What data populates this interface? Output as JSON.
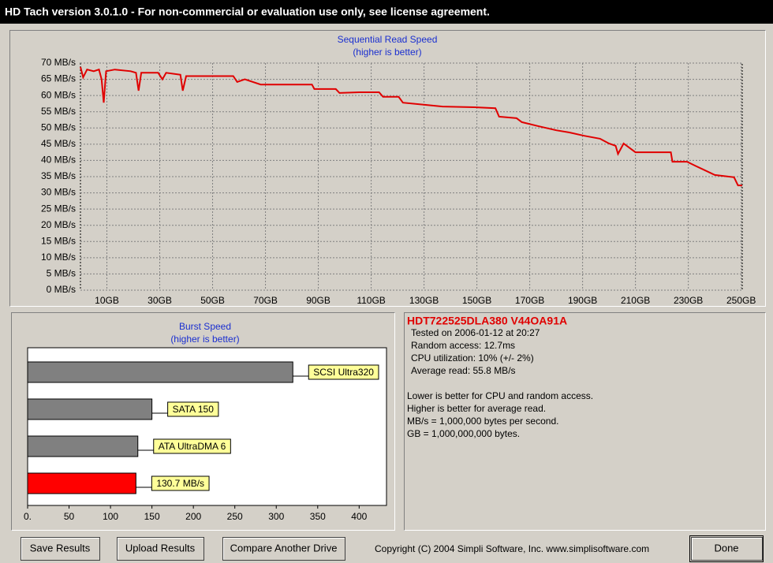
{
  "window_title": "HD Tach version 3.0.1.0  - For non-commercial or evaluation use only, see license agreement.",
  "chart_data": [
    {
      "type": "line",
      "title": "Sequential Read Speed",
      "subtitle": "(higher is better)",
      "color": "#e00000",
      "grid": true,
      "x": [
        0,
        1,
        2.5,
        5,
        7,
        8,
        8.8,
        9.7,
        13,
        19,
        21,
        22,
        23,
        29.4,
        31,
        32.4,
        37.8,
        38.7,
        40,
        57.8,
        59.3,
        62.2,
        68.2,
        87.6,
        88.5,
        96.6,
        98,
        105.5,
        113,
        114.5,
        120.4,
        122,
        131,
        137,
        149,
        157,
        158.4,
        165,
        167,
        173,
        180,
        185,
        190.6,
        196.6,
        200,
        202.5,
        203.4,
        205.5,
        210,
        223.4,
        224,
        229.5,
        232.5,
        240,
        247.3,
        248.8,
        250.4
      ],
      "values": [
        68.8,
        65.6,
        68,
        67.5,
        68,
        65,
        57.8,
        67.5,
        68,
        67.5,
        67,
        61.5,
        67,
        67,
        65,
        67,
        66.4,
        61.5,
        66,
        66,
        64.2,
        65,
        63.4,
        63.4,
        62,
        62,
        60.8,
        61,
        61,
        59.6,
        59.6,
        57.8,
        57.1,
        56.6,
        56.4,
        56.1,
        53.5,
        53,
        51.8,
        50.6,
        49.3,
        48.6,
        47.6,
        46.7,
        45.2,
        44.5,
        42,
        45.2,
        42.5,
        42.5,
        39.6,
        39.6,
        38.4,
        35.5,
        34.8,
        32.3,
        32.3
      ],
      "xlim": [
        0,
        250.4
      ],
      "xticks": [
        {
          "value": 10,
          "label": "10GB"
        },
        {
          "value": 30,
          "label": "30GB"
        },
        {
          "value": 50,
          "label": "50GB"
        },
        {
          "value": 70,
          "label": "70GB"
        },
        {
          "value": 90,
          "label": "90GB"
        },
        {
          "value": 110,
          "label": "110GB"
        },
        {
          "value": 130,
          "label": "130GB"
        },
        {
          "value": 150,
          "label": "150GB"
        },
        {
          "value": 170,
          "label": "170GB"
        },
        {
          "value": 190,
          "label": "190GB"
        },
        {
          "value": 210,
          "label": "210GB"
        },
        {
          "value": 230,
          "label": "230GB"
        },
        {
          "value": 250,
          "label": "250GB"
        }
      ],
      "ylim": [
        0,
        70
      ],
      "yticks": [
        {
          "value": 0,
          "label": "0 MB/s"
        },
        {
          "value": 5,
          "label": "5 MB/s"
        },
        {
          "value": 10,
          "label": "10 MB/s"
        },
        {
          "value": 15,
          "label": "15 MB/s"
        },
        {
          "value": 20,
          "label": "20 MB/s"
        },
        {
          "value": 25,
          "label": "25 MB/s"
        },
        {
          "value": 30,
          "label": "30 MB/s"
        },
        {
          "value": 35,
          "label": "35 MB/s"
        },
        {
          "value": 40,
          "label": "40 MB/s"
        },
        {
          "value": 45,
          "label": "45 MB/s"
        },
        {
          "value": 50,
          "label": "50 MB/s"
        },
        {
          "value": 55,
          "label": "55 MB/s"
        },
        {
          "value": 60,
          "label": "60 MB/s"
        },
        {
          "value": 65,
          "label": "65 MB/s"
        },
        {
          "value": 70,
          "label": "70 MB/s"
        }
      ]
    },
    {
      "type": "hbar",
      "title": "Burst Speed",
      "subtitle": "(higher is better)",
      "categories": [
        "SCSI Ultra320",
        "SATA 150",
        "ATA UltraDMA 6",
        null
      ],
      "values": [
        320,
        150,
        133,
        130.7
      ],
      "value_labels": [
        null,
        null,
        null,
        "130.7 MB/s"
      ],
      "colors": [
        "#808080",
        "#808080",
        "#808080",
        "#ff0000"
      ],
      "xlim": [
        0,
        433
      ],
      "xticks": [
        {
          "value": 0,
          "label": "0."
        },
        50,
        100,
        150,
        200,
        250,
        300,
        350,
        400
      ]
    }
  ],
  "info": {
    "drive": "HDT722525DLA380 V44OA91A",
    "details": [
      "Tested on 2006-01-12 at 20:27",
      "Random access: 12.7ms",
      "CPU utilization: 10% (+/- 2%)",
      "Average read: 55.8 MB/s"
    ],
    "notes": [
      "Lower is better for CPU and random access.",
      "Higher is better for average read.",
      "MB/s = 1,000,000 bytes per second.",
      "GB = 1,000,000,000 bytes."
    ]
  },
  "buttons": [
    "Save Results",
    "Upload Results",
    "Compare Another Drive",
    "Done"
  ],
  "copyright": "Copyright (C) 2004 Simpli Software, Inc. www.simplisoftware.com"
}
